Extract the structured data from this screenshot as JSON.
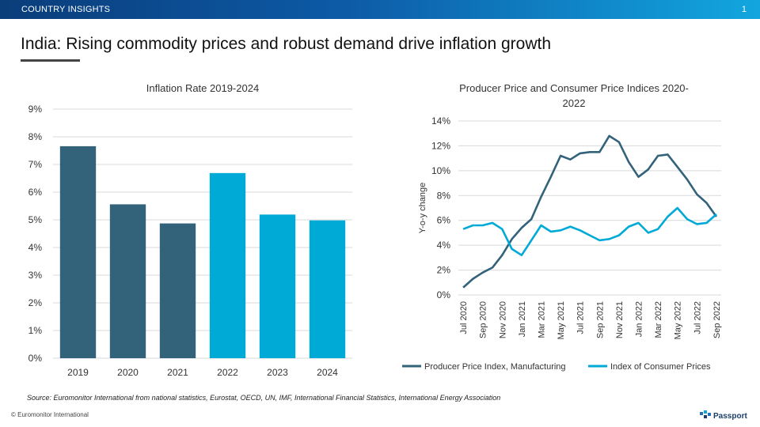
{
  "header": {
    "section_label": "COUNTRY INSIGHTS",
    "page_number": "1"
  },
  "page_title": "India: Rising commodity prices and robust demand drive inflation growth",
  "colors": {
    "dark_series": "#33627b",
    "light_series": "#00aad7",
    "bar_dark": "#33627b",
    "bar_light": "#00aad7",
    "grid": "#d9d9d9"
  },
  "chart_data": [
    {
      "type": "bar",
      "title": "Inflation Rate 2019-2024",
      "categories": [
        "2019",
        "2020",
        "2021",
        "2022",
        "2023",
        "2024"
      ],
      "values": [
        7.66,
        5.56,
        4.87,
        6.69,
        5.19,
        4.98
      ],
      "bar_colors": [
        "#33627b",
        "#33627b",
        "#33627b",
        "#00aad7",
        "#00aad7",
        "#00aad7"
      ],
      "ylim": [
        0,
        9
      ],
      "yticks": [
        "0%",
        "1%",
        "2%",
        "3%",
        "4%",
        "5%",
        "6%",
        "7%",
        "8%",
        "9%"
      ],
      "xlabel": "",
      "ylabel": "",
      "grid": true
    },
    {
      "type": "line",
      "title_lines": [
        "Producer Price and Consumer Price Indices 2020-",
        "2022"
      ],
      "ylabel": "Y-o-y change",
      "ylim": [
        0,
        14
      ],
      "yticks": [
        "0%",
        "2%",
        "4%",
        "6%",
        "8%",
        "10%",
        "12%",
        "14%"
      ],
      "xtick_labels": [
        "Jul 2020",
        "Sep 2020",
        "Nov 2020",
        "Jan 2021",
        "Mar 2021",
        "May 2021",
        "Jul 2021",
        "Sep 2021",
        "Nov 2021",
        "Jan 2022",
        "Mar 2022",
        "May 2022",
        "Jul 2022",
        "Sep 2022"
      ],
      "x": [
        "Jul 2020",
        "Aug 2020",
        "Sep 2020",
        "Oct 2020",
        "Nov 2020",
        "Dec 2020",
        "Jan 2021",
        "Feb 2021",
        "Mar 2021",
        "Apr 2021",
        "May 2021",
        "Jun 2021",
        "Jul 2021",
        "Aug 2021",
        "Sep 2021",
        "Oct 2021",
        "Nov 2021",
        "Dec 2021",
        "Jan 2022",
        "Feb 2022",
        "Mar 2022",
        "Apr 2022",
        "May 2022",
        "Jun 2022",
        "Jul 2022",
        "Aug 2022",
        "Sep 2022"
      ],
      "series": [
        {
          "name": "Producer Price Index, Manufacturing",
          "color": "#33627b",
          "values": [
            0.6,
            1.3,
            1.8,
            2.2,
            3.2,
            4.5,
            5.4,
            6.1,
            7.9,
            9.5,
            11.2,
            10.9,
            11.4,
            11.5,
            11.5,
            12.8,
            12.3,
            10.7,
            9.5,
            10.1,
            11.2,
            11.3,
            10.3,
            9.3,
            8.1,
            7.4,
            6.3
          ]
        },
        {
          "name": "Index of Consumer Prices",
          "color": "#00aad7",
          "values": [
            5.3,
            5.6,
            5.6,
            5.8,
            5.3,
            3.7,
            3.2,
            4.4,
            5.6,
            5.1,
            5.2,
            5.5,
            5.2,
            4.8,
            4.4,
            4.5,
            4.8,
            5.5,
            5.8,
            5.0,
            5.3,
            6.3,
            7.0,
            6.1,
            5.7,
            5.8,
            6.5
          ]
        }
      ],
      "legend_position": "bottom",
      "grid": true
    }
  ],
  "source_note": "Source: Euromonitor International from national statistics, Eurostat, OECD, UN, IMF, International Financial Statistics, International Energy Association",
  "footer": {
    "copyright": "© Euromonitor International",
    "brand": "Passport"
  }
}
